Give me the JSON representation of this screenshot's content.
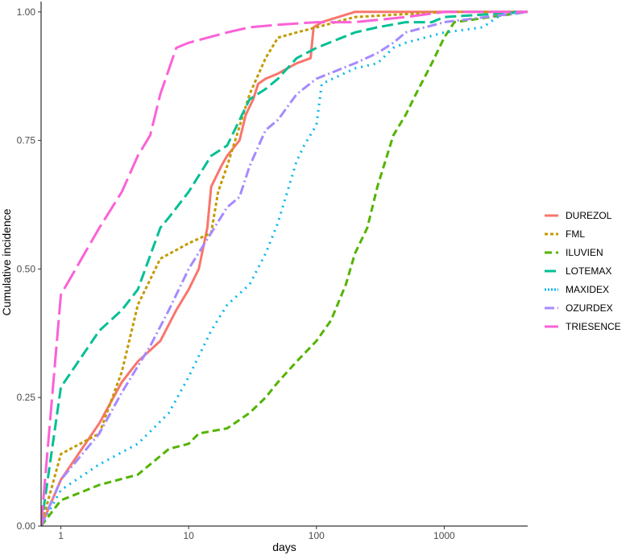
{
  "chart_data": {
    "type": "line",
    "xlabel": "days",
    "ylabel": "Cumulative incidence",
    "x_scale": "log10",
    "xlim": [
      0.7,
      4500
    ],
    "ylim": [
      0,
      1.02
    ],
    "x_ticks": [
      1,
      10,
      100,
      1000
    ],
    "x_tick_labels": [
      "1",
      "10",
      "100",
      "1000"
    ],
    "y_ticks": [
      0,
      0.25,
      0.5,
      0.75,
      1
    ],
    "y_tick_labels": [
      "0.00",
      "0.25",
      "0.50",
      "0.75",
      "1.00"
    ],
    "grid": false,
    "legend_position": "right",
    "series": [
      {
        "name": "DUREZOL",
        "color": "#F8766D",
        "dash": "solid",
        "x": [
          0.7,
          1,
          2,
          3,
          4,
          6,
          8,
          10,
          12,
          14,
          15,
          18,
          20,
          25,
          28,
          32,
          35,
          40,
          50,
          70,
          90,
          95,
          110,
          200,
          4500
        ],
        "y": [
          0,
          0.09,
          0.2,
          0.28,
          0.32,
          0.36,
          0.42,
          0.46,
          0.5,
          0.58,
          0.66,
          0.7,
          0.72,
          0.75,
          0.8,
          0.83,
          0.86,
          0.87,
          0.88,
          0.9,
          0.91,
          0.97,
          0.98,
          1.0,
          1.0
        ]
      },
      {
        "name": "FML",
        "color": "#C49A00",
        "dash": "short",
        "x": [
          0.7,
          1,
          2,
          3,
          4,
          6,
          10,
          15,
          17,
          20,
          30,
          40,
          50,
          70,
          100,
          200,
          1000,
          4500
        ],
        "y": [
          0,
          0.14,
          0.18,
          0.3,
          0.43,
          0.52,
          0.55,
          0.57,
          0.65,
          0.7,
          0.84,
          0.91,
          0.95,
          0.96,
          0.97,
          0.99,
          1.0,
          1.0
        ]
      },
      {
        "name": "ILUVIEN",
        "color": "#53B400",
        "dash": "medium",
        "x": [
          0.7,
          1,
          2,
          4,
          7,
          10,
          12,
          20,
          30,
          40,
          50,
          70,
          100,
          130,
          170,
          200,
          250,
          300,
          400,
          500,
          600,
          800,
          1000,
          1200,
          4500
        ],
        "y": [
          0,
          0.05,
          0.08,
          0.1,
          0.15,
          0.16,
          0.18,
          0.19,
          0.22,
          0.25,
          0.28,
          0.32,
          0.36,
          0.4,
          0.47,
          0.53,
          0.58,
          0.66,
          0.76,
          0.8,
          0.84,
          0.9,
          0.95,
          0.98,
          1.0
        ]
      },
      {
        "name": "LOTEMAX",
        "color": "#00C094",
        "dash": "long",
        "x": [
          0.7,
          1,
          2,
          3,
          4,
          6,
          7,
          10,
          15,
          20,
          30,
          40,
          50,
          70,
          100,
          200,
          300,
          500,
          800,
          1000,
          4500
        ],
        "y": [
          0,
          0.27,
          0.38,
          0.42,
          0.46,
          0.58,
          0.6,
          0.65,
          0.72,
          0.74,
          0.83,
          0.85,
          0.87,
          0.91,
          0.93,
          0.96,
          0.97,
          0.98,
          0.98,
          0.99,
          1.0
        ]
      },
      {
        "name": "MAXIDEX",
        "color": "#00B6EB",
        "dash": "dotted",
        "x": [
          0.7,
          1,
          2,
          4,
          7,
          10,
          15,
          20,
          30,
          40,
          50,
          70,
          80,
          100,
          110,
          200,
          300,
          400,
          500,
          1000,
          2000,
          3000,
          4500
        ],
        "y": [
          0,
          0.07,
          0.12,
          0.16,
          0.22,
          0.29,
          0.38,
          0.43,
          0.47,
          0.53,
          0.59,
          0.71,
          0.74,
          0.78,
          0.86,
          0.89,
          0.9,
          0.93,
          0.94,
          0.96,
          0.97,
          1.0,
          1.0
        ]
      },
      {
        "name": "OZURDEX",
        "color": "#A58AFF",
        "dash": "dashdot",
        "x": [
          0.7,
          1,
          2,
          3,
          5,
          7,
          10,
          15,
          20,
          25,
          30,
          40,
          50,
          70,
          100,
          200,
          300,
          400,
          500,
          1000,
          4500
        ],
        "y": [
          0,
          0.09,
          0.18,
          0.26,
          0.35,
          0.42,
          0.5,
          0.57,
          0.62,
          0.64,
          0.7,
          0.77,
          0.79,
          0.84,
          0.87,
          0.9,
          0.92,
          0.94,
          0.96,
          0.98,
          1.0
        ]
      },
      {
        "name": "TRIESENCE",
        "color": "#FB61D7",
        "dash": "longlong",
        "x": [
          0.7,
          1,
          2,
          3,
          4,
          5,
          6,
          8,
          10,
          20,
          30,
          50,
          100,
          200,
          500,
          1000,
          4500
        ],
        "y": [
          0,
          0.45,
          0.58,
          0.65,
          0.72,
          0.76,
          0.84,
          0.93,
          0.94,
          0.96,
          0.97,
          0.975,
          0.98,
          0.98,
          0.99,
          1.0,
          1.0
        ]
      }
    ]
  }
}
